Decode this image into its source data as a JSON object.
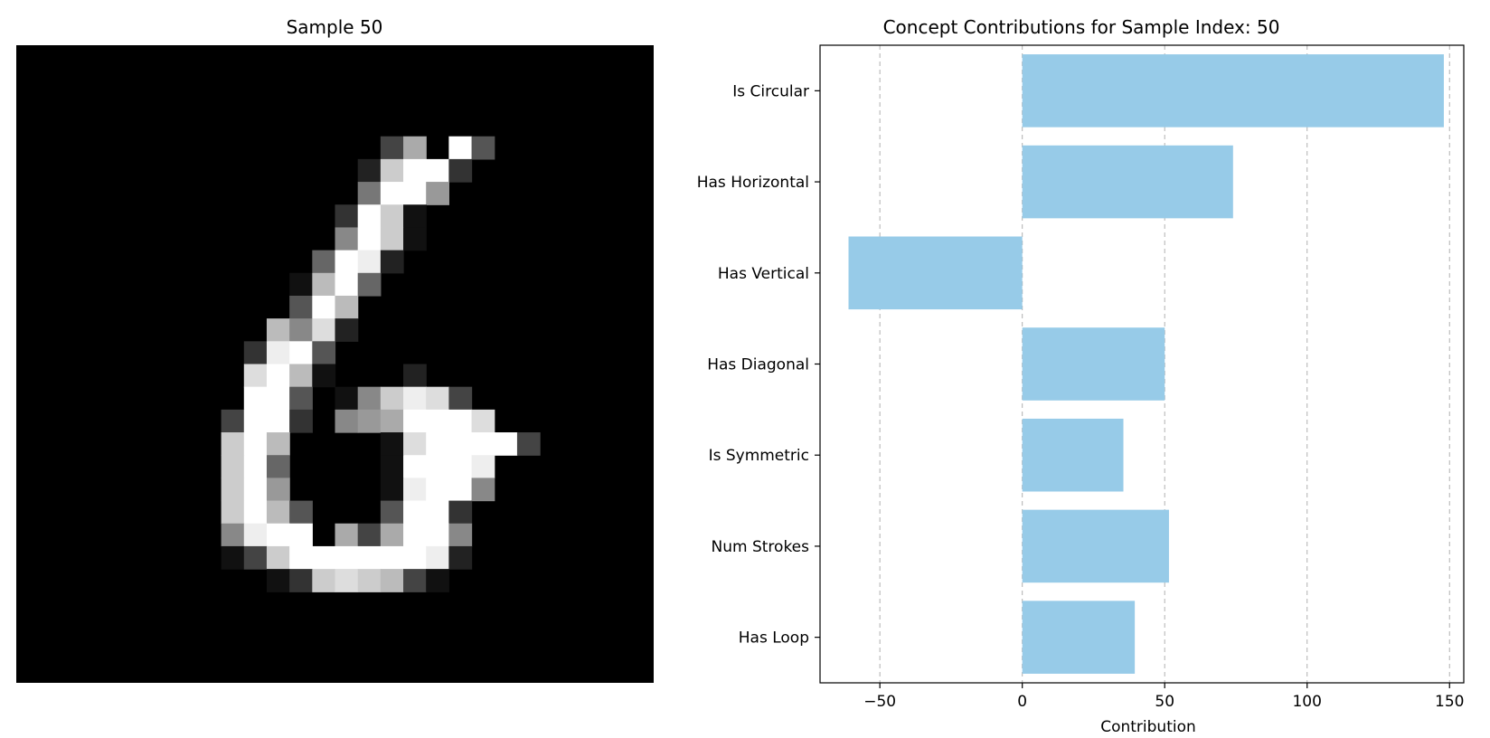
{
  "left_panel": {
    "title": "Sample 50",
    "image_kind": "28x28 grayscale digit",
    "pixel_rows": [
      "............................",
      "............................",
      "............................",
      "............................",
      "................4a.f5.......",
      "...............2cff3........",
      "...............7ff9.........",
      "..............3fc1..........",
      "..............8fc1..........",
      ".............6fe2...........",
      "............1bf6............",
      "............5fb.............",
      "...........b8d2.............",
      "..........3ef5..............",
      "..........dfb1...2..........",
      "..........ff5.18ced4........",
      ".........4ff3.89afffd.......",
      ".........cfb....1dffff4.....",
      ".........cf6....1fffe.......",
      ".........cf9....1eff8.......",
      ".........cfb5...5ff3........",
      ".........8eff a4aff8........",
      ".........14cffffffe2........",
      "...........13cdcb41.........",
      "............................",
      "............................",
      "............................",
      "............................"
    ]
  },
  "chart_data": {
    "type": "bar",
    "orientation": "horizontal",
    "title": "Concept Contributions for Sample Index: 50",
    "xlabel": "Contribution",
    "ylabel": "",
    "categories": [
      "Is Circular",
      "Has Horizontal",
      "Has Vertical",
      "Has Diagonal",
      "Is Symmetric",
      "Num Strokes",
      "Has Loop"
    ],
    "values": [
      148,
      74,
      -61,
      50,
      35.5,
      51.5,
      39.5
    ],
    "xlim": [
      -71,
      155
    ],
    "xticks": [
      -50,
      0,
      50,
      100,
      150
    ],
    "xtick_labels": [
      "−50",
      "0",
      "50",
      "100",
      "150"
    ],
    "grid": "x-dashed",
    "bar_color": "#97cbe8"
  }
}
